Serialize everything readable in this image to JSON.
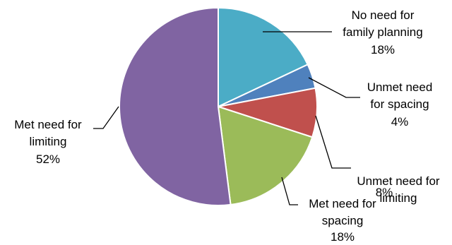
{
  "chart_data": {
    "type": "pie",
    "title": "",
    "slices": [
      {
        "label": "No need for family planning",
        "label_lines": [
          "No need for",
          "family planning"
        ],
        "value": 18,
        "value_label": "18%",
        "color": "#4BACC6"
      },
      {
        "label": "Unmet need for spacing",
        "label_lines": [
          "Unmet need",
          "for spacing"
        ],
        "value": 4,
        "value_label": "4%",
        "color": "#4F81BD"
      },
      {
        "label": "Unmet need for limiting",
        "label_lines": [
          "Unmet need for",
          "limiting"
        ],
        "value": 8,
        "value_label": "8%",
        "color": "#C0504D"
      },
      {
        "label": "Met need for spacing",
        "label_lines": [
          "Met need for",
          "spacing"
        ],
        "value": 18,
        "value_label": "18%",
        "color": "#9BBB59"
      },
      {
        "label": "Met need for limiting",
        "label_lines": [
          "Met need for",
          "limiting"
        ],
        "value": 52,
        "value_label": "52%",
        "color": "#8064A2"
      }
    ],
    "start_angle_deg": 0,
    "direction": "clockwise",
    "legend": "none",
    "labels": "outside-with-leader-lines"
  }
}
